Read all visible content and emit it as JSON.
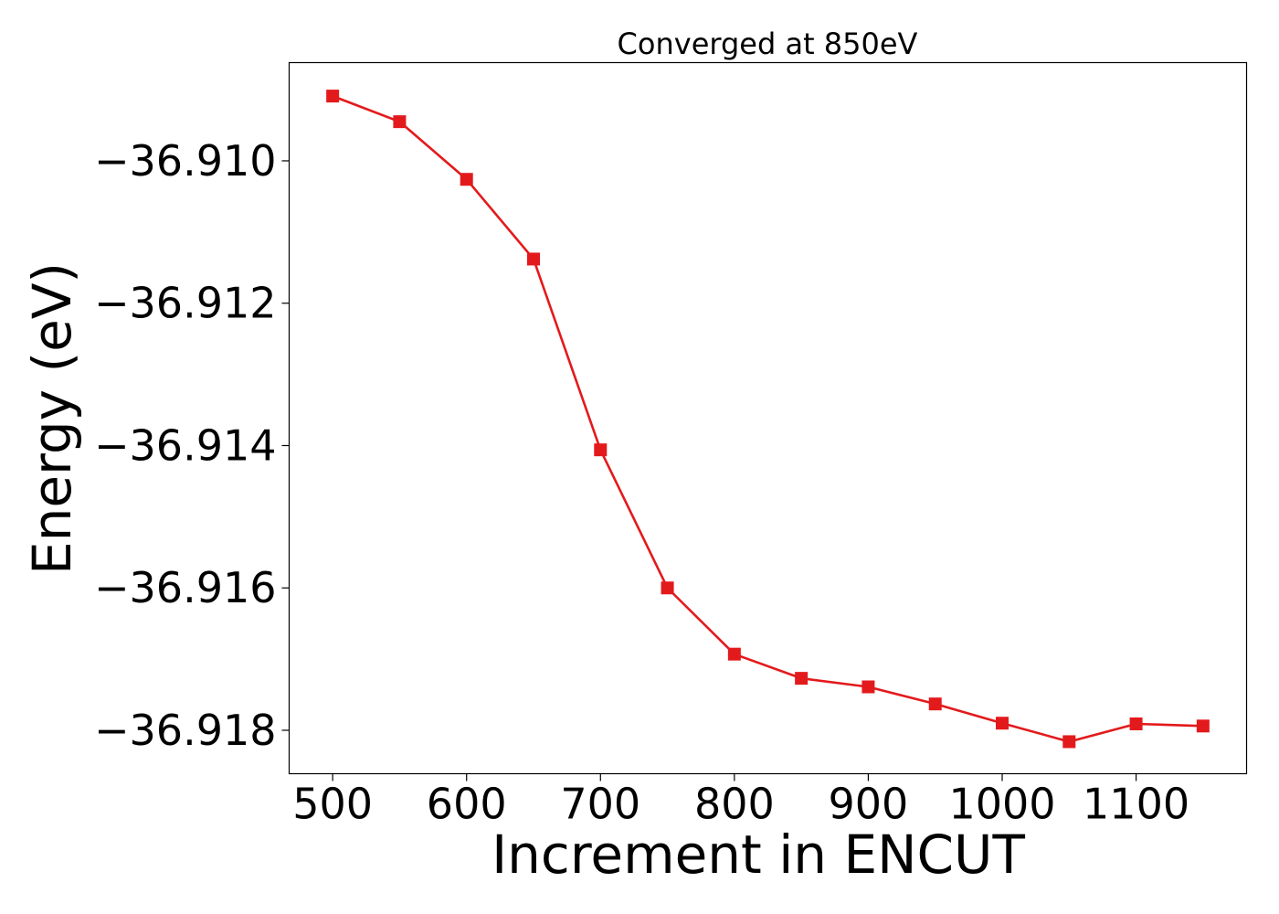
{
  "chart_data": {
    "type": "line",
    "title": "Converged at 850eV",
    "xlabel": "Increment in ENCUT",
    "ylabel": "Energy (eV)",
    "xlim": [
      467.5,
      1182.5
    ],
    "ylim": [
      -36.91861,
      -36.90862
    ],
    "xticks": [
      500,
      600,
      700,
      800,
      900,
      1000,
      1100
    ],
    "xtick_labels": [
      "500",
      "600",
      "700",
      "800",
      "900",
      "1000",
      "1100"
    ],
    "yticks": [
      -36.91,
      -36.912,
      -36.914,
      -36.916,
      -36.918
    ],
    "ytick_labels": [
      "−36.910",
      "−36.912",
      "−36.914",
      "−36.916",
      "−36.918"
    ],
    "grid": false,
    "series": [
      {
        "color": "#e31a1c",
        "marker": "square",
        "x": [
          500,
          550,
          600,
          650,
          700,
          750,
          800,
          850,
          900,
          950,
          1000,
          1050,
          1100,
          1150
        ],
        "y": [
          -36.90909,
          -36.90945,
          -36.91026,
          -36.91138,
          -36.91406,
          -36.916,
          -36.91693,
          -36.91727,
          -36.91739,
          -36.91763,
          -36.9179,
          -36.91816,
          -36.91791,
          -36.91794
        ]
      }
    ]
  }
}
